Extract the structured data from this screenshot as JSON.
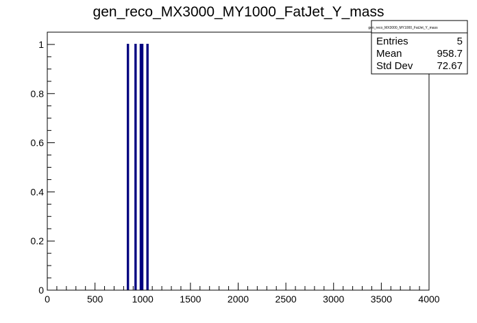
{
  "chart_data": {
    "type": "bar",
    "title": "gen_reco_MX3000_MY1000_FatJet_Y_mass",
    "xlabel": "",
    "ylabel": "",
    "xlim": [
      0,
      4000
    ],
    "ylim": [
      0,
      1.05
    ],
    "x_ticks": [
      "0",
      "500",
      "1000",
      "1500",
      "2000",
      "2500",
      "3000",
      "3500",
      "4000"
    ],
    "y_ticks": [
      "0",
      "0.2",
      "0.4",
      "0.6",
      "0.8",
      "1"
    ],
    "bin_width": 10,
    "bins": [
      {
        "x": 845,
        "value": 1
      },
      {
        "x": 925,
        "value": 1
      },
      {
        "x": 980,
        "value": 1
      },
      {
        "x": 995,
        "value": 1
      },
      {
        "x": 1050,
        "value": 1
      }
    ],
    "grid": false,
    "line_color": "#000080",
    "stats_box": {
      "title": "gen_reco_MX3000_MY1000_FatJet_Y_mass",
      "rows": [
        {
          "label": "Entries",
          "value": "5"
        },
        {
          "label": "Mean",
          "value": "958.7"
        },
        {
          "label": "Std Dev",
          "value": "72.67"
        }
      ]
    }
  }
}
